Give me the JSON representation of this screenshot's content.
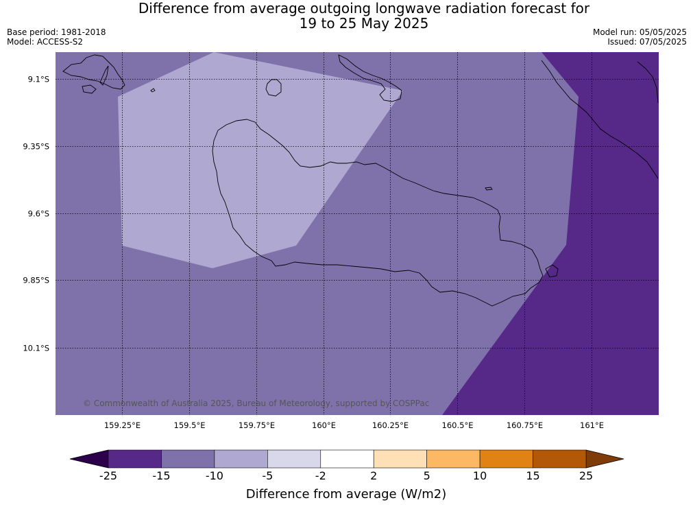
{
  "title": {
    "line1": "Difference from average outgoing longwave radiation forecast for",
    "line2": "19 to 25 May 2025"
  },
  "meta": {
    "base_period": "Base period: 1981-2018",
    "model": "Model: ACCESS-S2",
    "model_run": "Model run: 05/05/2025",
    "issued": "Issued: 07/05/2025"
  },
  "map": {
    "lat_ticks": [
      "9.1°S",
      "9.35°S",
      "9.6°S",
      "9.85°S",
      "10.1°S"
    ],
    "lon_ticks": [
      "159.25°E",
      "159.5°E",
      "159.75°E",
      "160°E",
      "160.25°E",
      "160.5°E",
      "160.75°E",
      "161°E"
    ],
    "copyright": "© Commonwealth of Australia 2025, Bureau of Meteorology, supported by COSPPac"
  },
  "colorbar": {
    "title": "Difference from average (W/m2)",
    "labels": [
      "-25",
      "-15",
      "-10",
      "-5",
      "-2",
      "2",
      "5",
      "10",
      "15",
      "25"
    ],
    "colors": [
      "#562888",
      "#7f72ab",
      "#afa8d0",
      "#d9d8eb",
      "#ffffff",
      "#fee0b7",
      "#fdb863",
      "#e08214",
      "#b35806"
    ],
    "extend_low": "#2d004b",
    "extend_high": "#7f3b08"
  },
  "colors": {
    "background": "#7f72ab",
    "light_region": "#afa8d0",
    "dark_region": "#562888",
    "coast": "#000000"
  }
}
